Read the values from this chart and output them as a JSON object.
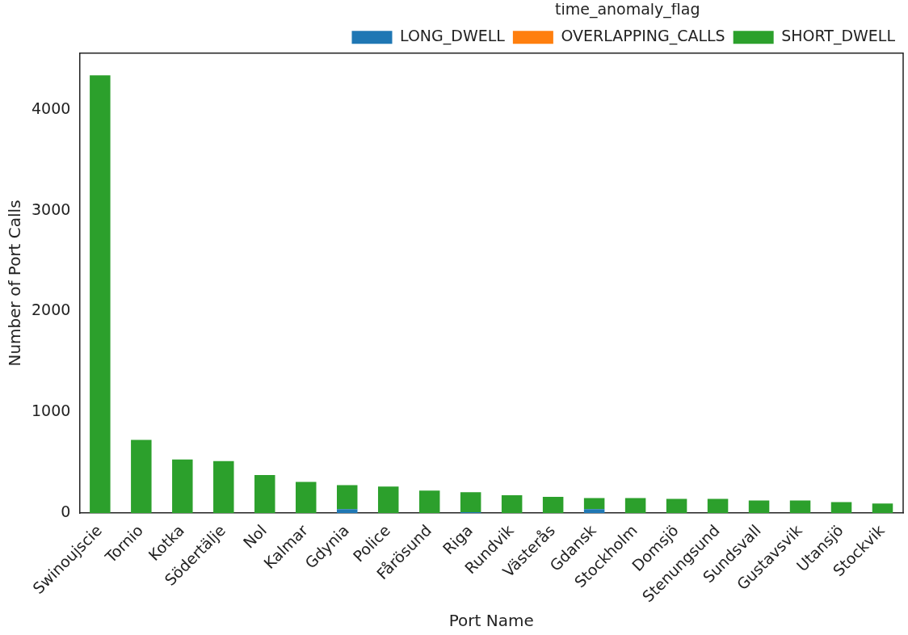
{
  "chart_data": {
    "type": "bar",
    "stacked": true,
    "xlabel": "Port Name",
    "ylabel": "Number of Port Calls",
    "legend_title": "time_anomaly_flag",
    "legend": "top right",
    "grid": false,
    "categories": [
      "Swinoujscie",
      "Tornio",
      "Kotka",
      "Södertälje",
      "Nol",
      "Kalmar",
      "Gdynia",
      "Police",
      "Fårösund",
      "Riga",
      "Rundvik",
      "Västerås",
      "Gdansk",
      "Stockholm",
      "Domsjö",
      "Stenungsund",
      "Sundsvall",
      "Gustavsvik",
      "Utansjö",
      "Stockvik"
    ],
    "series": [
      {
        "name": "LONG_DWELL",
        "color": "#1f77b4",
        "values": [
          0,
          0,
          0,
          0,
          0,
          0,
          40,
          0,
          0,
          10,
          0,
          0,
          40,
          0,
          0,
          0,
          0,
          0,
          0,
          0
        ]
      },
      {
        "name": "OVERLAPPING_CALLS",
        "color": "#ff7f0e",
        "values": [
          0,
          0,
          0,
          0,
          0,
          0,
          0,
          0,
          0,
          0,
          0,
          0,
          0,
          0,
          0,
          0,
          0,
          0,
          0,
          0
        ]
      },
      {
        "name": "SHORT_DWELL",
        "color": "#2ca02c",
        "values": [
          4340,
          726,
          533,
          517,
          378,
          309,
          238,
          263,
          224,
          198,
          178,
          162,
          110,
          150,
          141,
          141,
          126,
          126,
          110,
          95
        ]
      }
    ],
    "ylim": [
      0,
      4560
    ],
    "yticks": [
      0,
      1000,
      2000,
      3000,
      4000
    ]
  }
}
